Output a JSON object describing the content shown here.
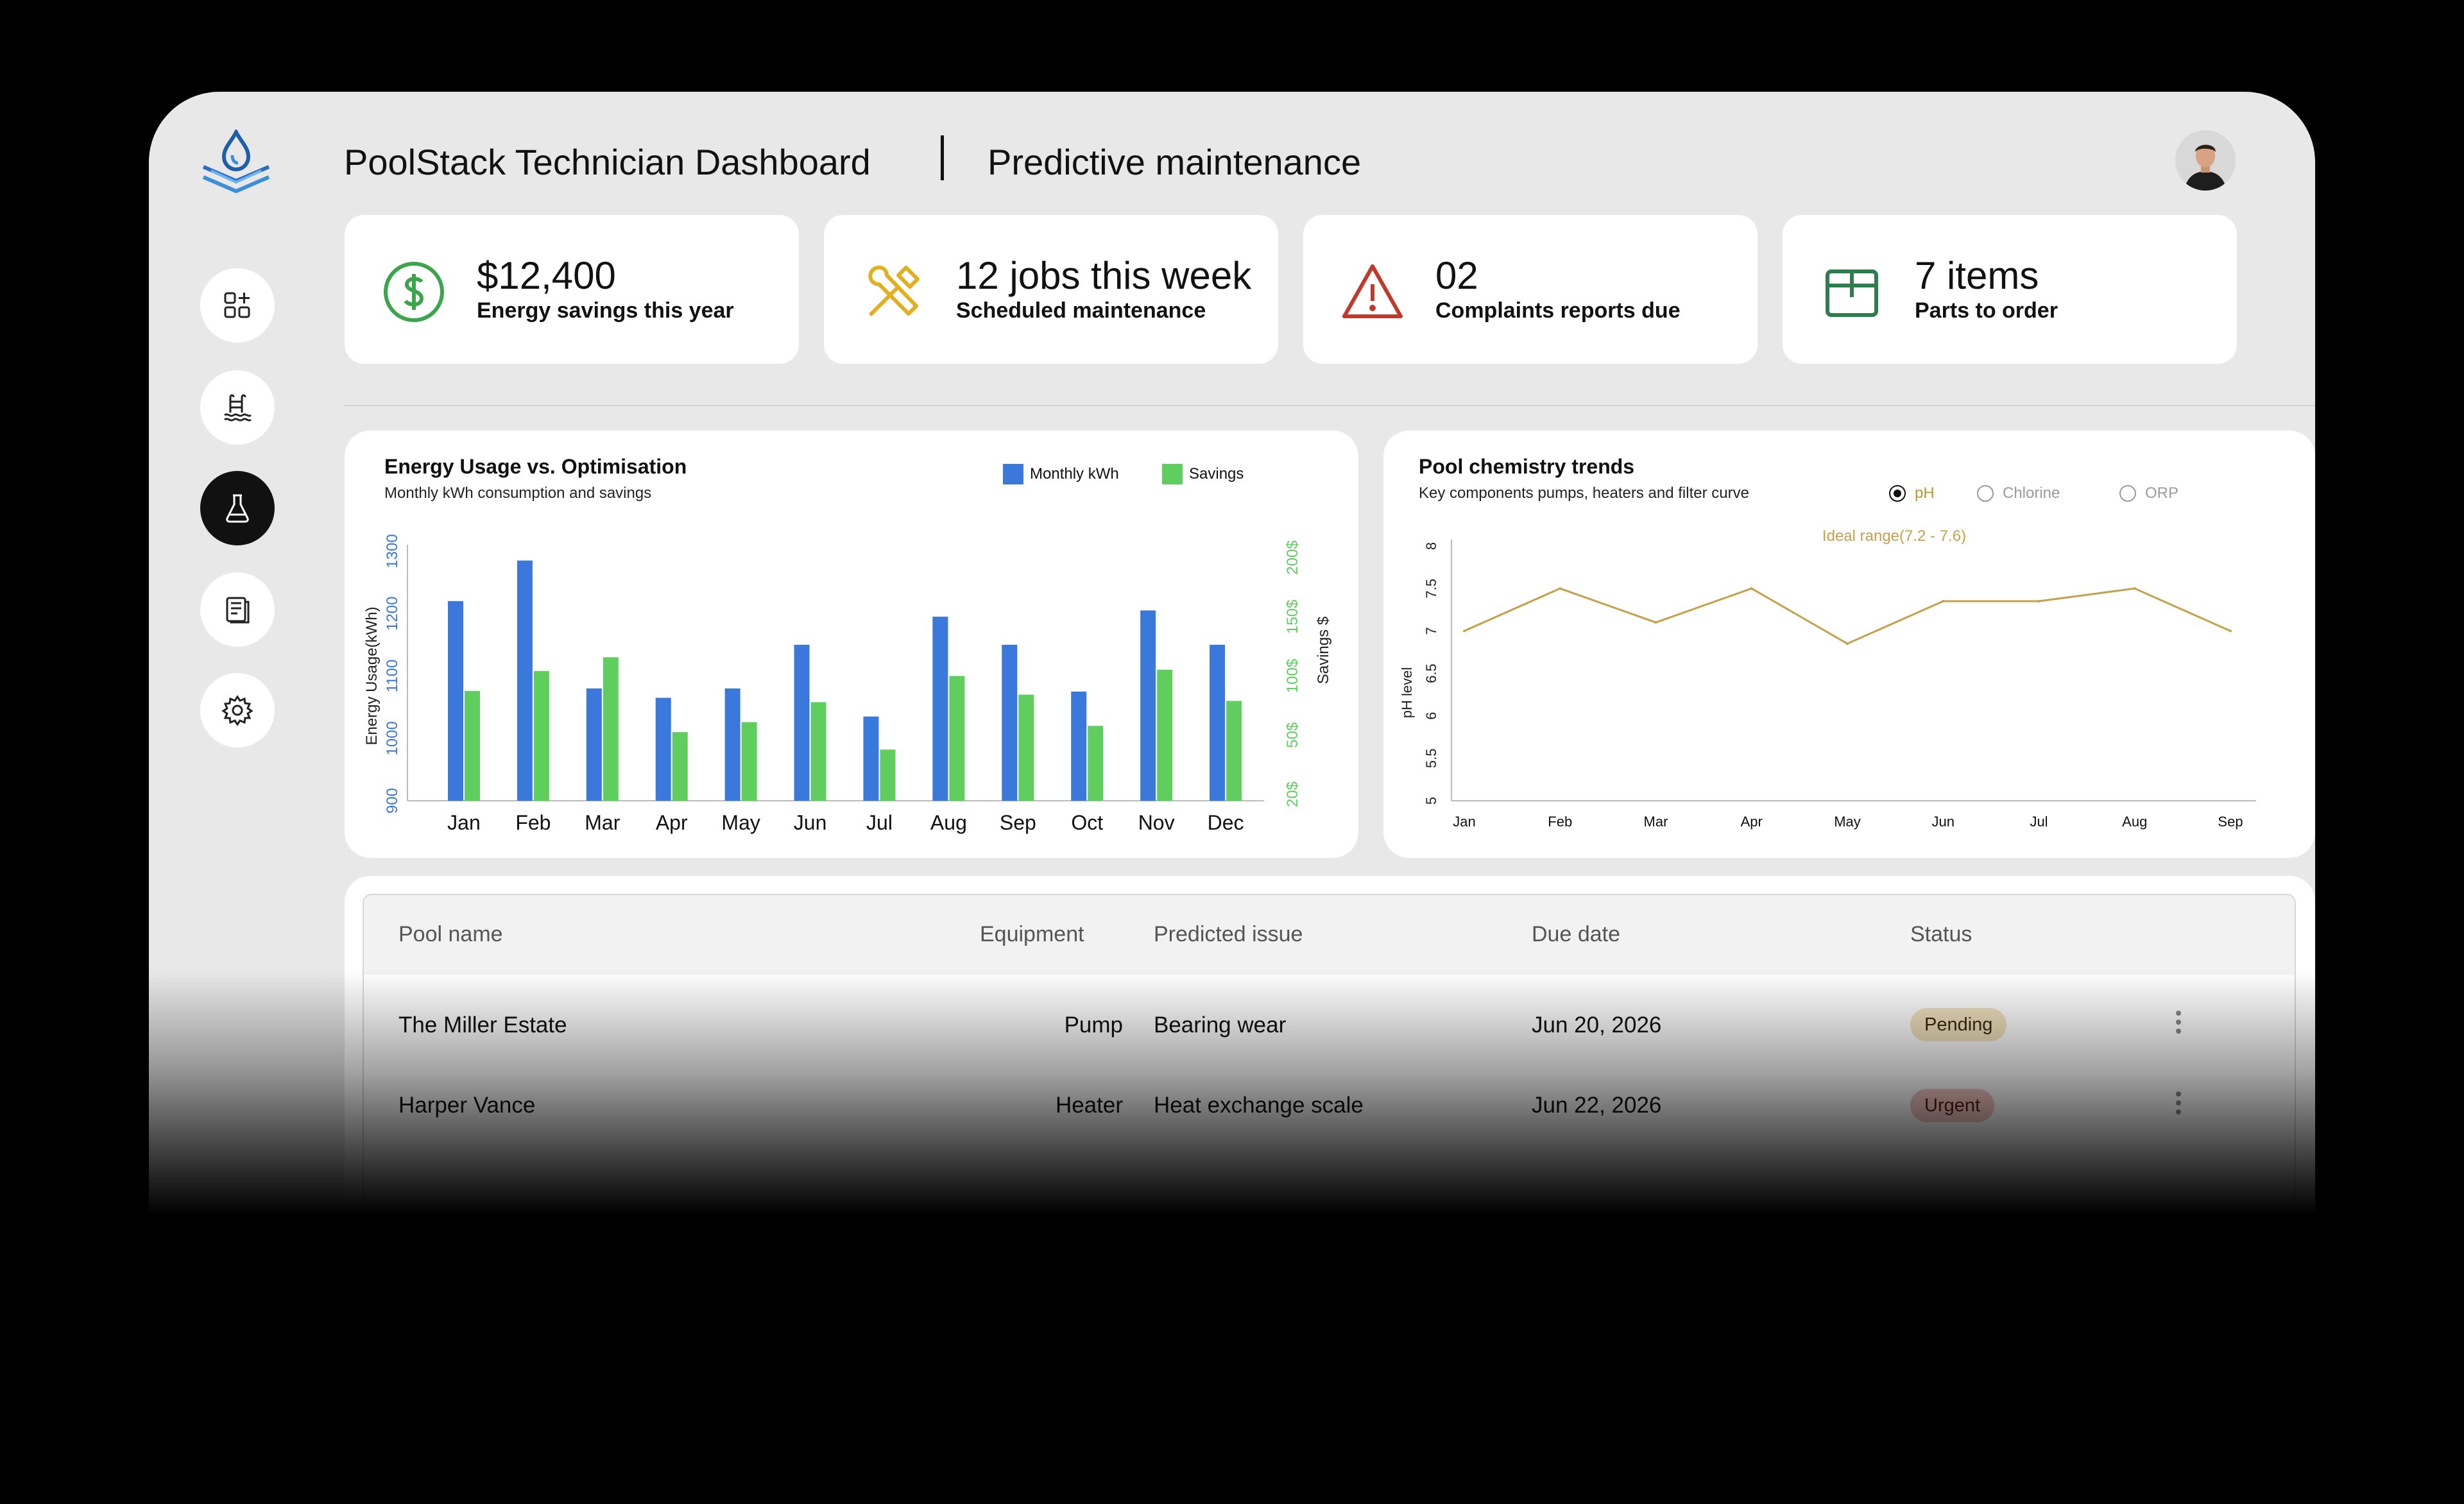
{
  "header": {
    "title": "PoolStack Technician Dashboard",
    "subtitle": "Predictive maintenance"
  },
  "sidebar": {
    "items": [
      {
        "icon": "dashboard-grid-icon",
        "active": false
      },
      {
        "icon": "pool-ladder-icon",
        "active": false
      },
      {
        "icon": "chemistry-flask-icon",
        "active": true
      },
      {
        "icon": "reports-icon",
        "active": false
      },
      {
        "icon": "gear-icon",
        "active": false
      }
    ]
  },
  "stats": [
    {
      "value": "$12,400",
      "label": "Energy savings this year",
      "icon": "dollar-circle-icon",
      "color": "#3aa54a"
    },
    {
      "value": "12 jobs this week",
      "label": "Scheduled maintenance",
      "icon": "tools-icon",
      "color": "#e0b020"
    },
    {
      "value": "02",
      "label": "Complaints reports due",
      "icon": "warning-triangle-icon",
      "color": "#c0392b"
    },
    {
      "value": "7 items",
      "label": "Parts to order",
      "icon": "package-box-icon",
      "color": "#2f7d4f"
    }
  ],
  "energy_chart": {
    "title": "Energy Usage vs. Optimisation",
    "subtitle": "Monthly kWh consumption and savings",
    "legend": [
      "Monthly kWh",
      "Savings"
    ],
    "colors": {
      "kwh": "#3b78dc",
      "savings": "#5fce5f"
    },
    "left_ticks": [
      "900",
      "1000",
      "1100",
      "1200",
      "1300"
    ],
    "right_ticks": [
      "20$",
      "50$",
      "100$",
      "150$",
      "200$"
    ],
    "ylabel_left": "Energy Usage(kWh)",
    "ylabel_right": "Savings $"
  },
  "chemistry_chart": {
    "title": "Pool chemistry trends",
    "subtitle": "Key components pumps, heaters and filter curve",
    "options": [
      {
        "label": "pH",
        "selected": true
      },
      {
        "label": "Chlorine",
        "selected": false
      },
      {
        "label": "ORP",
        "selected": false
      }
    ],
    "annotation": "Ideal range(7.2 - 7.6)",
    "ylabel": "pH level",
    "y_ticks": [
      "5",
      "5.5",
      "6",
      "6.5",
      "7",
      "7.5",
      "8"
    ],
    "line_color": "#c4a24a"
  },
  "chart_data": [
    {
      "type": "bar",
      "title": "Energy Usage vs. Optimisation",
      "subtitle": "Monthly kWh consumption and savings",
      "categories": [
        "Jan",
        "Feb",
        "Mar",
        "Apr",
        "May",
        "Jun",
        "Jul",
        "Aug",
        "Sep",
        "Oct",
        "Nov",
        "Dec"
      ],
      "series": [
        {
          "name": "Monthly kWh",
          "axis": "left",
          "values": [
            1220,
            1285,
            1080,
            1065,
            1080,
            1150,
            1035,
            1195,
            1150,
            1075,
            1205,
            1150
          ]
        },
        {
          "name": "Savings",
          "axis": "right",
          "values": [
            88,
            104,
            115,
            55,
            63,
            79,
            41,
            100,
            85,
            60,
            105,
            80
          ]
        }
      ],
      "ylabel": "Energy Usage(kWh)",
      "ylabel_right": "Savings $",
      "ylim": [
        900,
        1300
      ],
      "ylim_right": [
        20,
        200
      ],
      "legend": "top-right"
    },
    {
      "type": "line",
      "title": "Pool chemistry trends",
      "subtitle": "Key components pumps, heaters and filter curve",
      "x": [
        "Jan",
        "Feb",
        "Mar",
        "Apr",
        "May",
        "Jun",
        "Jul",
        "Aug",
        "Sep"
      ],
      "series": [
        {
          "name": "pH",
          "values": [
            7.0,
            7.5,
            7.1,
            7.5,
            6.85,
            7.35,
            7.35,
            7.5,
            7.0
          ]
        }
      ],
      "ylabel": "pH level",
      "ylim": [
        5,
        8
      ],
      "annotation": "Ideal range(7.2 - 7.6)"
    }
  ],
  "table": {
    "headers": [
      "Pool name",
      "Equipment",
      "Predicted issue",
      "Due date",
      "Status"
    ],
    "rows": [
      {
        "pool": "The Miller Estate",
        "equipment": "Pump",
        "issue": "Bearing wear",
        "due": "Jun 20, 2026",
        "status": "Pending",
        "status_type": "pending"
      },
      {
        "pool": "Harper Vance",
        "equipment": "Heater",
        "issue": "Heat exchange scale",
        "due": "Jun 22, 2026",
        "status": "Urgent",
        "status_type": "urgent"
      }
    ]
  }
}
